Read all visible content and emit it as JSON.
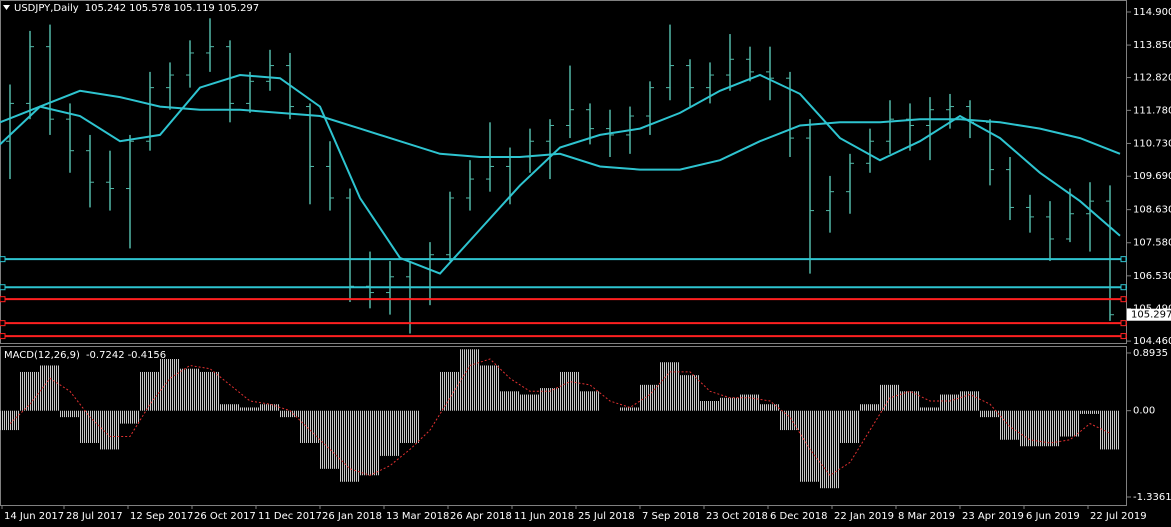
{
  "chart_data": [
    {
      "type": "ohlc",
      "title": "USDJPY,Daily",
      "header_values": [
        105.242,
        105.578,
        105.119,
        105.297
      ],
      "color": "#52b8a8",
      "xlim": [
        0,
        563.5
      ],
      "x": [
        5,
        15,
        25,
        35,
        45,
        55,
        65,
        75,
        85,
        95,
        105,
        115,
        125,
        135,
        145,
        155,
        165,
        175,
        185,
        195,
        205,
        215,
        225,
        235,
        245,
        255,
        265,
        275,
        285,
        295,
        305,
        315,
        325,
        335,
        345,
        355,
        365,
        375,
        385,
        395,
        405,
        415,
        425,
        435,
        445,
        455,
        465,
        475,
        485,
        495,
        505,
        515,
        525,
        535,
        545,
        555
      ],
      "open": [
        110.8,
        112.0,
        113.8,
        111.5,
        110.5,
        109.5,
        109.3,
        110.8,
        112.5,
        112.9,
        113.6,
        113.8,
        112.0,
        112.7,
        113.2,
        111.9,
        110.0,
        109.0,
        106.2,
        106.0,
        106.5,
        105.8,
        107.2,
        109.0,
        109.6,
        110.0,
        110.3,
        110.8,
        111.3,
        111.8,
        111.2,
        111.0,
        111.6,
        112.5,
        113.2,
        112.5,
        112.9,
        113.4,
        113.0,
        112.8,
        110.9,
        108.6,
        109.2,
        110.1,
        110.8,
        111.5,
        111.3,
        111.8,
        111.9,
        111.4,
        109.9,
        108.7,
        108.4,
        107.7,
        108.5,
        108.9
      ],
      "high": [
        112.6,
        114.3,
        114.5,
        112.0,
        111.0,
        110.5,
        111.0,
        113.0,
        113.3,
        114.0,
        114.7,
        114.0,
        113.0,
        113.7,
        113.6,
        112.0,
        110.8,
        109.3,
        107.3,
        107.0,
        107.0,
        107.6,
        109.2,
        110.2,
        111.4,
        110.6,
        111.2,
        111.5,
        113.2,
        112.0,
        111.8,
        111.9,
        112.7,
        114.5,
        113.4,
        113.3,
        114.2,
        113.8,
        113.8,
        113.0,
        111.5,
        109.7,
        110.4,
        111.2,
        112.1,
        112.0,
        112.2,
        112.3,
        112.1,
        111.5,
        110.3,
        109.1,
        108.9,
        109.3,
        109.5,
        109.4
      ],
      "low": [
        109.6,
        111.5,
        111.0,
        109.8,
        108.7,
        108.6,
        107.4,
        110.5,
        111.8,
        112.5,
        113.0,
        111.4,
        111.7,
        112.4,
        111.5,
        108.8,
        108.6,
        105.7,
        105.5,
        105.3,
        104.7,
        105.6,
        107.0,
        108.6,
        109.2,
        108.8,
        109.8,
        109.6,
        110.9,
        110.7,
        110.3,
        110.4,
        111.0,
        112.1,
        111.9,
        112.0,
        112.4,
        112.7,
        112.1,
        110.3,
        106.6,
        107.9,
        108.5,
        109.8,
        110.4,
        110.5,
        110.2,
        111.2,
        110.9,
        109.4,
        108.3,
        107.9,
        107.0,
        107.6,
        107.3,
        105.1
      ],
      "close": [
        112.0,
        113.8,
        111.5,
        110.5,
        109.5,
        109.3,
        110.8,
        112.5,
        112.9,
        113.6,
        113.8,
        112.0,
        112.7,
        113.2,
        111.9,
        110.0,
        109.0,
        106.2,
        106.0,
        106.5,
        105.8,
        107.2,
        109.0,
        109.6,
        110.0,
        110.3,
        110.8,
        111.3,
        111.8,
        111.2,
        111.0,
        111.6,
        112.5,
        113.2,
        112.5,
        112.9,
        113.4,
        113.0,
        112.8,
        110.9,
        108.6,
        109.2,
        110.1,
        110.8,
        111.5,
        111.3,
        111.8,
        111.9,
        111.4,
        109.9,
        108.7,
        108.4,
        107.7,
        108.5,
        108.9,
        105.297
      ],
      "overlays": [
        {
          "color": "#2ec4d0",
          "x": [
            0,
            20,
            40,
            60,
            80,
            100,
            120,
            140,
            160,
            180,
            200,
            220,
            240,
            260,
            280,
            300,
            320,
            340,
            360,
            380,
            400,
            420,
            440,
            460,
            480,
            500,
            520,
            540,
            560
          ],
          "values": [
            110.7,
            111.9,
            111.6,
            110.8,
            111.0,
            112.5,
            112.9,
            112.8,
            111.9,
            109.0,
            107.1,
            106.6,
            108.0,
            109.4,
            110.6,
            111.0,
            111.2,
            111.7,
            112.4,
            112.9,
            112.3,
            110.9,
            110.2,
            110.8,
            111.6,
            110.9,
            109.8,
            108.9,
            107.8
          ]
        },
        {
          "color": "#2ec4d0",
          "x": [
            0,
            20,
            40,
            60,
            80,
            100,
            120,
            140,
            160,
            180,
            200,
            220,
            240,
            260,
            280,
            300,
            320,
            340,
            360,
            380,
            400,
            420,
            440,
            460,
            480,
            500,
            520,
            540,
            560
          ],
          "values": [
            111.4,
            111.9,
            112.4,
            112.2,
            111.9,
            111.8,
            111.8,
            111.7,
            111.6,
            111.2,
            110.8,
            110.4,
            110.3,
            110.3,
            110.4,
            110.0,
            109.9,
            109.9,
            110.2,
            110.8,
            111.3,
            111.4,
            111.4,
            111.5,
            111.5,
            111.4,
            111.2,
            110.9,
            110.4
          ]
        }
      ],
      "hlines": [
        {
          "value": 107.06,
          "color": "#2ec4d0"
        },
        {
          "value": 106.17,
          "color": "#2ec4d0"
        },
        {
          "value": 105.79,
          "color": "#ff2020"
        },
        {
          "value": 105.03,
          "color": "#ff2020"
        },
        {
          "value": 104.62,
          "color": "#ff2020"
        }
      ],
      "last_price": 105.297,
      "ylim": [
        104.4,
        115.28
      ],
      "yticks": [
        {
          "value": 114.9,
          "label": "114.900"
        },
        {
          "value": 113.85,
          "label": "113.850"
        },
        {
          "value": 112.82,
          "label": "112.820"
        },
        {
          "value": 111.78,
          "label": "111.780"
        },
        {
          "value": 110.73,
          "label": "110.730"
        },
        {
          "value": 109.69,
          "label": "109.690"
        },
        {
          "value": 108.63,
          "label": "108.630"
        },
        {
          "value": 107.58,
          "label": "107.580"
        },
        {
          "value": 106.53,
          "label": "106.530"
        },
        {
          "value": 105.49,
          "label": "105.490"
        },
        {
          "value": 104.46,
          "label": "104.460"
        }
      ]
    },
    {
      "type": "macd",
      "title": "MACD(12,26,9)",
      "header_values": [
        -0.7242,
        -0.4156
      ],
      "color": "#c8c8c8",
      "signal_color": "#e03030",
      "xlim": [
        0,
        563.5
      ],
      "x": [
        5,
        15,
        25,
        35,
        45,
        55,
        65,
        75,
        85,
        95,
        105,
        115,
        125,
        135,
        145,
        155,
        165,
        175,
        185,
        195,
        205,
        215,
        225,
        235,
        245,
        255,
        265,
        275,
        285,
        295,
        305,
        315,
        325,
        335,
        345,
        355,
        365,
        375,
        385,
        395,
        405,
        415,
        425,
        435,
        445,
        455,
        465,
        475,
        485,
        495,
        505,
        515,
        525,
        535,
        545,
        555
      ],
      "values": [
        -0.3,
        0.6,
        0.7,
        -0.1,
        -0.5,
        -0.6,
        -0.2,
        0.6,
        0.8,
        0.65,
        0.6,
        0.1,
        0.05,
        0.1,
        -0.1,
        -0.5,
        -0.9,
        -1.1,
        -1.0,
        -0.7,
        -0.5,
        0.0,
        0.6,
        0.95,
        0.7,
        0.3,
        0.25,
        0.35,
        0.6,
        0.3,
        0.0,
        0.05,
        0.4,
        0.75,
        0.55,
        0.15,
        0.2,
        0.25,
        0.1,
        -0.3,
        -1.1,
        -1.2,
        -0.5,
        0.1,
        0.4,
        0.3,
        0.05,
        0.25,
        0.3,
        -0.1,
        -0.45,
        -0.55,
        -0.55,
        -0.4,
        -0.05,
        -0.6
      ],
      "signal": [
        -0.2,
        0.1,
        0.5,
        0.3,
        -0.1,
        -0.4,
        -0.4,
        0.1,
        0.5,
        0.7,
        0.65,
        0.4,
        0.15,
        0.1,
        0.0,
        -0.3,
        -0.6,
        -0.9,
        -1.0,
        -0.85,
        -0.6,
        -0.3,
        0.2,
        0.7,
        0.8,
        0.5,
        0.3,
        0.3,
        0.45,
        0.4,
        0.15,
        0.05,
        0.25,
        0.6,
        0.6,
        0.3,
        0.2,
        0.2,
        0.15,
        -0.1,
        -0.6,
        -1.0,
        -0.8,
        -0.3,
        0.2,
        0.3,
        0.15,
        0.15,
        0.25,
        0.1,
        -0.25,
        -0.45,
        -0.5,
        -0.45,
        -0.2,
        -0.35
      ],
      "ylim": [
        -1.46,
        0.986
      ],
      "yticks": [
        0.8935,
        {
          "value": 0,
          "label": "0.00"
        },
        -1.3361
      ],
      "xticks": [
        {
          "value": 1,
          "label": "14 Jun 2017"
        },
        {
          "value": 32,
          "label": "28 Jul 2017"
        },
        {
          "value": 64,
          "label": "12 Sep 2017"
        },
        {
          "value": 96,
          "label": "26 Oct 2017"
        },
        {
          "value": 128,
          "label": "11 Dec 2017"
        },
        {
          "value": 160,
          "label": "26 Jan 2018"
        },
        {
          "value": 192,
          "label": "13 Mar 2018"
        },
        {
          "value": 224,
          "label": "26 Apr 2018"
        },
        {
          "value": 256,
          "label": "11 Jun 2018"
        },
        {
          "value": 288,
          "label": "25 Jul 2018"
        },
        {
          "value": 320,
          "label": "7 Sep 2018"
        },
        {
          "value": 352,
          "label": "23 Oct 2018"
        },
        {
          "value": 384,
          "label": "6 Dec 2018"
        },
        {
          "value": 416,
          "label": "22 Jan 2019"
        },
        {
          "value": 448,
          "label": "8 Mar 2019"
        },
        {
          "value": 480,
          "label": "23 Apr 2019"
        },
        {
          "value": 512,
          "label": "6 Jun 2019"
        },
        {
          "value": 544,
          "label": "22 Jul 2019"
        }
      ]
    }
  ]
}
